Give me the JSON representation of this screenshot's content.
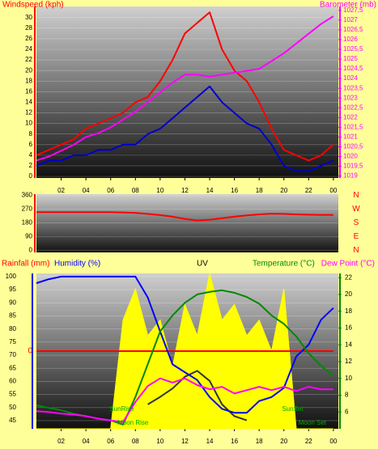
{
  "chart_data": [
    {
      "type": "line",
      "x": [
        0,
        1,
        2,
        3,
        4,
        5,
        6,
        7,
        8,
        9,
        10,
        11,
        12,
        13,
        14,
        15,
        16,
        17,
        18,
        19,
        20,
        21,
        22,
        23,
        24
      ],
      "xlim": [
        0,
        24.4
      ],
      "xticks": [
        {
          "value": 2,
          "label": "02"
        },
        {
          "value": 4,
          "label": "04"
        },
        {
          "value": 6,
          "label": "06"
        },
        {
          "value": 8,
          "label": "08"
        },
        10,
        12,
        14,
        16,
        18,
        20,
        22,
        {
          "value": 24,
          "label": "00"
        }
      ],
      "ylim": [
        -0.3,
        32.1
      ],
      "yticks": [
        0,
        2,
        4,
        6,
        8,
        10,
        12,
        14,
        16,
        18,
        20,
        22,
        24,
        26,
        28,
        30
      ],
      "y2lim": [
        1018.9,
        1027.7
      ],
      "y2ticks": [
        1019,
        {
          "value": 1019.5,
          "label": "1019,5"
        },
        1020,
        {
          "value": 1020.5,
          "label": "1020,5"
        },
        1021,
        {
          "value": 1021.5,
          "label": "1021,5"
        },
        1022,
        {
          "value": 1022.5,
          "label": "1022,5"
        },
        1023,
        {
          "value": 1023.5,
          "label": "1023,5"
        },
        1024,
        {
          "value": 1024.5,
          "label": "1024,5"
        },
        1025,
        {
          "value": 1025.5,
          "label": "1025,5"
        },
        1026,
        {
          "value": 1026.5,
          "label": "1026,5"
        },
        1027,
        {
          "value": 1027.5,
          "label": "1027,5"
        }
      ],
      "grid": true,
      "series": [
        {
          "name": "Windspeed (kph)",
          "color": "#ff0000",
          "values": [
            4,
            5,
            6,
            7,
            9,
            10,
            11,
            12,
            14,
            15,
            18,
            22,
            27,
            29,
            31,
            24,
            20,
            18,
            14,
            9,
            5,
            4,
            3,
            4,
            6
          ]
        },
        {
          "color": "#0000cc",
          "values": [
            2,
            3,
            3,
            4,
            4,
            5,
            5,
            6,
            6,
            8,
            9,
            11,
            13,
            15,
            17,
            14,
            12,
            10,
            9,
            6,
            2,
            1,
            1,
            2,
            3
          ]
        },
        {
          "name": "Barometer (mb)",
          "color": "#ff00ff",
          "axis": "y2",
          "values": [
            1019.8,
            1020.0,
            1020.3,
            1020.6,
            1021.0,
            1021.2,
            1021.5,
            1021.9,
            1022.3,
            1022.8,
            1023.3,
            1023.8,
            1024.2,
            1024.2,
            1024.1,
            1024.2,
            1024.3,
            1024.4,
            1024.5,
            1024.9,
            1025.3,
            1025.8,
            1026.3,
            1026.8,
            1027.2
          ]
        }
      ]
    },
    {
      "type": "line",
      "x": [
        0,
        1,
        2,
        3,
        4,
        5,
        6,
        7,
        8,
        9,
        10,
        11,
        12,
        13,
        14,
        15,
        16,
        17,
        18,
        19,
        20,
        21,
        22,
        23,
        24
      ],
      "xlim": [
        0,
        24.4
      ],
      "ylim": [
        -15,
        368
      ],
      "yticks": [
        0,
        90,
        180,
        270,
        360
      ],
      "y2lim": [
        -15,
        368
      ],
      "y2ticks": [
        {
          "value": 360,
          "label": "N"
        },
        {
          "value": 270,
          "label": "W"
        },
        {
          "value": 180,
          "label": "S"
        },
        {
          "value": 90,
          "label": "E"
        },
        {
          "value": 0,
          "label": "N"
        }
      ],
      "grid": true,
      "series": [
        {
          "color": "#ff0000",
          "values": [
            250,
            250,
            250,
            250,
            250,
            250,
            250,
            248,
            245,
            238,
            230,
            220,
            205,
            195,
            200,
            210,
            220,
            228,
            235,
            240,
            238,
            235,
            233,
            232,
            232
          ]
        }
      ]
    },
    {
      "type": "line",
      "x": [
        0,
        1,
        2,
        3,
        4,
        5,
        6,
        7,
        8,
        9,
        10,
        11,
        12,
        13,
        14,
        15,
        16,
        17,
        18,
        19,
        20,
        21,
        22,
        23,
        24
      ],
      "xlim": [
        0,
        24.4
      ],
      "xticks": [
        {
          "value": 2,
          "label": "02"
        },
        {
          "value": 4,
          "label": "04"
        },
        {
          "value": 6,
          "label": "06"
        },
        {
          "value": 8,
          "label": "08"
        },
        10,
        12,
        14,
        16,
        18,
        20,
        22,
        {
          "value": 24,
          "label": "00"
        }
      ],
      "ylim": [
        41.9,
        101.2
      ],
      "yticks": [
        45,
        50,
        55,
        60,
        65,
        70,
        75,
        80,
        85,
        90,
        95,
        100
      ],
      "y2lim": [
        4,
        22.5
      ],
      "y2ticks": [
        6,
        8,
        10,
        12,
        14,
        16,
        18,
        20,
        22
      ],
      "y3lim": [
        -1,
        1
      ],
      "y3ticks": [
        0
      ],
      "y4lim": [
        0,
        10
      ],
      "grid": true,
      "series": [
        {
          "name": "UV",
          "color": "#ffff00",
          "axis": "y4",
          "values": [
            0,
            0,
            0,
            0,
            0,
            0,
            0,
            7,
            9,
            6,
            7,
            4,
            8,
            6,
            10,
            7,
            8,
            6,
            7,
            5,
            9,
            0,
            0,
            0,
            0
          ]
        },
        {
          "name": "Rainfall (mm)",
          "color": "#ff0000",
          "axis": "y3",
          "values": [
            0,
            0,
            0,
            0,
            0,
            0,
            0,
            0,
            0,
            0,
            0,
            0,
            0,
            0,
            0,
            0,
            0,
            0,
            0,
            0,
            0,
            0,
            0,
            0,
            0
          ]
        },
        {
          "color": "#333333",
          "axis": "y2",
          "values": [
            null,
            null,
            null,
            null,
            null,
            null,
            null,
            null,
            null,
            6.9,
            7.8,
            8.8,
            10.2,
            10.9,
            9.7,
            6.9,
            5.5,
            5,
            null,
            null,
            null,
            null,
            null,
            null,
            null
          ]
        },
        {
          "name": "Humidity (%)",
          "color": "#0000ff",
          "values": [
            97.5,
            99,
            100,
            100,
            100,
            100,
            100,
            100,
            100,
            92,
            79,
            66.5,
            63.5,
            60.5,
            54,
            49.5,
            48,
            48,
            52.5,
            54,
            57.5,
            69.5,
            74,
            83.5,
            88
          ]
        },
        {
          "name": "Temperature (°C)",
          "color": "#008800",
          "axis": "y2",
          "values": [
            6.8,
            6.5,
            6.2,
            5.8,
            5.5,
            5.2,
            5,
            4.5,
            7.8,
            11.7,
            15.6,
            17.5,
            19,
            20,
            20.3,
            20.5,
            20.2,
            19.7,
            18.9,
            17.5,
            16.5,
            15,
            13,
            11.5,
            10.3
          ]
        },
        {
          "name": "Dew Point (°C)",
          "color": "#ff00ff",
          "axis": "y2",
          "values": [
            6.1,
            6,
            5.8,
            5.7,
            5.5,
            5.2,
            5,
            4.8,
            7.2,
            9.1,
            10,
            9.5,
            10,
            9.2,
            8.7,
            9,
            8.2,
            8.6,
            9,
            8.6,
            9,
            8.5,
            9,
            8.7,
            8.7
          ]
        }
      ],
      "annotations": [
        {
          "text": "SunRise",
          "x": 6.9
        },
        {
          "text": "Moon Rise",
          "x": 7.8
        },
        {
          "text": "SunSet",
          "x": 20.7
        },
        {
          "text": "Moon Set",
          "x": 22.3
        }
      ]
    }
  ]
}
